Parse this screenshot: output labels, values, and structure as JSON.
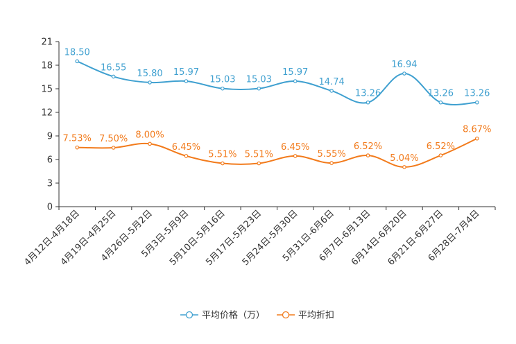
{
  "chart_data": {
    "type": "line",
    "categories": [
      "4月12日-4月18日",
      "4月19日-4月25日",
      "4月26日-5月2日",
      "5月3日-5月9日",
      "5月10日-5月16日",
      "5月17日-5月23日",
      "5月24日-5月30日",
      "5月31日-6月6日",
      "6月7日-6月13日",
      "6月14日-6月20日",
      "6月21日-6月27日",
      "6月28日-7月4日"
    ],
    "ylim": [
      0,
      21
    ],
    "yticks": [
      0,
      3,
      6,
      9,
      12,
      15,
      18,
      21
    ],
    "series": [
      {
        "name": "平均价格（万）",
        "color": "#3fa0d0",
        "values": [
          18.5,
          16.55,
          15.8,
          15.97,
          15.03,
          15.03,
          15.97,
          14.74,
          13.26,
          16.94,
          13.26,
          13.26
        ],
        "labels": [
          "18.50",
          "16.55",
          "15.80",
          "15.97",
          "15.03",
          "15.03",
          "15.97",
          "14.74",
          "13.26",
          "16.94",
          "13.26",
          "13.26"
        ]
      },
      {
        "name": "平均折扣",
        "color": "#f27b1c",
        "values": [
          7.53,
          7.5,
          8.0,
          6.45,
          5.51,
          5.51,
          6.45,
          5.55,
          6.52,
          5.04,
          6.52,
          8.67
        ],
        "labels": [
          "7.53%",
          "7.50%",
          "8.00%",
          "6.45%",
          "5.51%",
          "5.51%",
          "6.45%",
          "5.55%",
          "6.52%",
          "5.04%",
          "6.52%",
          "8.67%"
        ]
      }
    ],
    "legend_position": "bottom-center"
  }
}
